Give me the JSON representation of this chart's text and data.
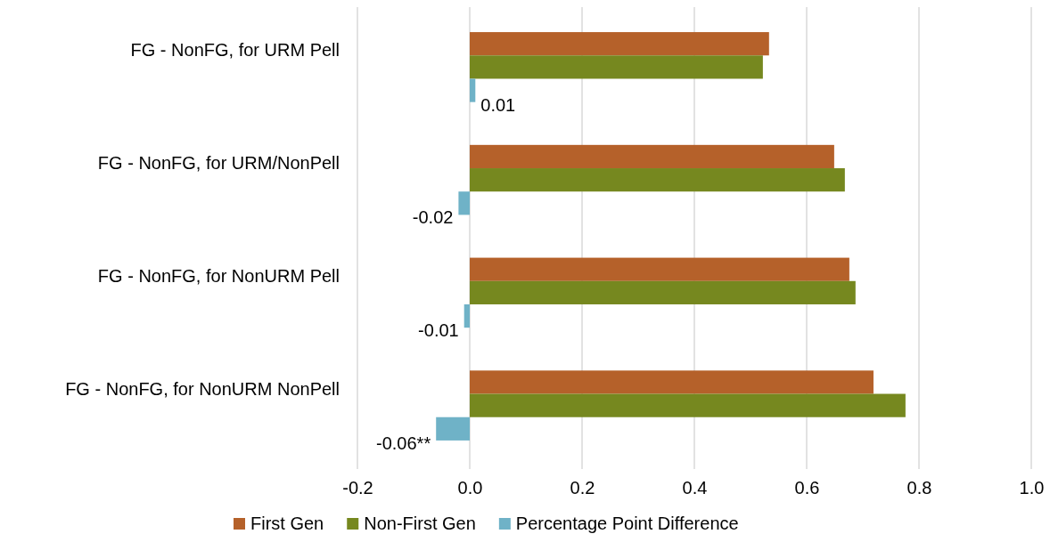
{
  "chart_data": {
    "type": "bar",
    "orientation": "horizontal",
    "categories": [
      "FG - NonFG, for URM Pell",
      "FG - NonFG, for URM/NonPell",
      "FG - NonFG, for NonURM Pell",
      "FG - NonFG, for NonURM NonPell"
    ],
    "series": [
      {
        "name": "First Gen",
        "color": "#b5612a",
        "values": [
          0.533,
          0.649,
          0.676,
          0.719
        ]
      },
      {
        "name": "Non-First Gen",
        "color": "#76881f",
        "values": [
          0.522,
          0.668,
          0.687,
          0.776
        ]
      },
      {
        "name": "Percentage Point Difference",
        "color": "#6fb2c7",
        "values": [
          0.01,
          -0.02,
          -0.01,
          -0.06
        ],
        "value_labels": [
          "0.01",
          "-0.02",
          "-0.01",
          "-0.06**"
        ]
      }
    ],
    "xlim": [
      -0.2,
      1.0
    ],
    "xticks": [
      -0.2,
      {
        "value": 0,
        "label": "0.0"
      },
      0.2,
      0.4,
      0.6,
      0.8,
      {
        "value": 1,
        "label": "1.0"
      }
    ],
    "grid": "x",
    "legend": "bottom"
  }
}
